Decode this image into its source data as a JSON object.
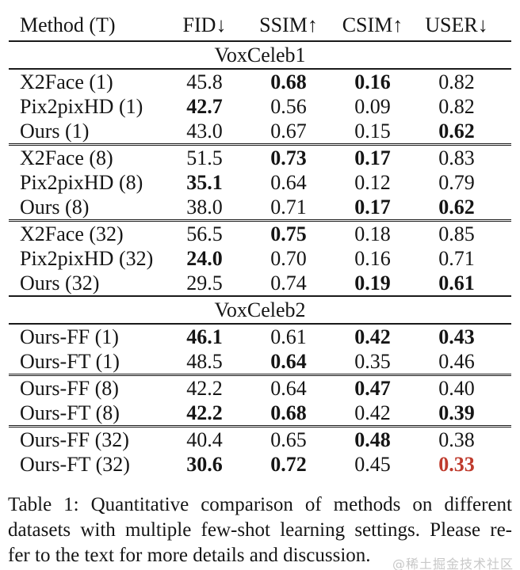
{
  "colors": {
    "text": "#151515",
    "rule": "#1a1a1a",
    "highlight_red": "#bf3b2d",
    "watermark_gray": "#c8c8c8",
    "background": "#ffffff"
  },
  "table": {
    "columns": [
      {
        "label": "Method (T)",
        "align": "left"
      },
      {
        "label": "FID↓",
        "align": "center"
      },
      {
        "label": "SSIM↑",
        "align": "center"
      },
      {
        "label": "CSIM↑",
        "align": "center"
      },
      {
        "label": "USER↓",
        "align": "center"
      }
    ],
    "sections": [
      {
        "title": "VoxCeleb1",
        "groups": [
          {
            "rows": [
              {
                "method": "X2Face (1)",
                "values": [
                  "45.8",
                  "0.68",
                  "0.16",
                  "0.82"
                ],
                "bold": [
                  1,
                  2
                ],
                "red": []
              },
              {
                "method": "Pix2pixHD (1)",
                "values": [
                  "42.7",
                  "0.56",
                  "0.09",
                  "0.82"
                ],
                "bold": [
                  0
                ],
                "red": []
              },
              {
                "method": "Ours (1)",
                "values": [
                  "43.0",
                  "0.67",
                  "0.15",
                  "0.62"
                ],
                "bold": [
                  3
                ],
                "red": []
              }
            ]
          },
          {
            "rows": [
              {
                "method": "X2Face (8)",
                "values": [
                  "51.5",
                  "0.73",
                  "0.17",
                  "0.83"
                ],
                "bold": [
                  1,
                  2
                ],
                "red": []
              },
              {
                "method": "Pix2pixHD (8)",
                "values": [
                  "35.1",
                  "0.64",
                  "0.12",
                  "0.79"
                ],
                "bold": [
                  0
                ],
                "red": []
              },
              {
                "method": "Ours (8)",
                "values": [
                  "38.0",
                  "0.71",
                  "0.17",
                  "0.62"
                ],
                "bold": [
                  2,
                  3
                ],
                "red": []
              }
            ]
          },
          {
            "rows": [
              {
                "method": "X2Face (32)",
                "values": [
                  "56.5",
                  "0.75",
                  "0.18",
                  "0.85"
                ],
                "bold": [
                  1
                ],
                "red": []
              },
              {
                "method": "Pix2pixHD (32)",
                "values": [
                  "24.0",
                  "0.70",
                  "0.16",
                  "0.71"
                ],
                "bold": [
                  0
                ],
                "red": []
              },
              {
                "method": "Ours (32)",
                "values": [
                  "29.5",
                  "0.74",
                  "0.19",
                  "0.61"
                ],
                "bold": [
                  2,
                  3
                ],
                "red": []
              }
            ]
          }
        ]
      },
      {
        "title": "VoxCeleb2",
        "groups": [
          {
            "rows": [
              {
                "method": "Ours-FF (1)",
                "values": [
                  "46.1",
                  "0.61",
                  "0.42",
                  "0.43"
                ],
                "bold": [
                  0,
                  2,
                  3
                ],
                "red": []
              },
              {
                "method": "Ours-FT (1)",
                "values": [
                  "48.5",
                  "0.64",
                  "0.35",
                  "0.46"
                ],
                "bold": [
                  1
                ],
                "red": []
              }
            ]
          },
          {
            "rows": [
              {
                "method": "Ours-FF (8)",
                "values": [
                  "42.2",
                  "0.64",
                  "0.47",
                  "0.40"
                ],
                "bold": [
                  2
                ],
                "red": []
              },
              {
                "method": "Ours-FT (8)",
                "values": [
                  "42.2",
                  "0.68",
                  "0.42",
                  "0.39"
                ],
                "bold": [
                  0,
                  1,
                  3
                ],
                "red": []
              }
            ]
          },
          {
            "rows": [
              {
                "method": "Ours-FF (32)",
                "values": [
                  "40.4",
                  "0.65",
                  "0.48",
                  "0.38"
                ],
                "bold": [
                  2
                ],
                "red": []
              },
              {
                "method": "Ours-FT (32)",
                "values": [
                  "30.6",
                  "0.72",
                  "0.45",
                  "0.33"
                ],
                "bold": [
                  0,
                  1,
                  3
                ],
                "red": [
                  3
                ]
              }
            ]
          }
        ]
      }
    ]
  },
  "caption": {
    "lines": [
      "Table 1:  Quantitative comparison of methods on different",
      "datasets with multiple few-shot learning settings. Please re-",
      "fer to the text for more details and discussion."
    ]
  },
  "watermark": {
    "text": "@稀土掘金技术社区"
  }
}
